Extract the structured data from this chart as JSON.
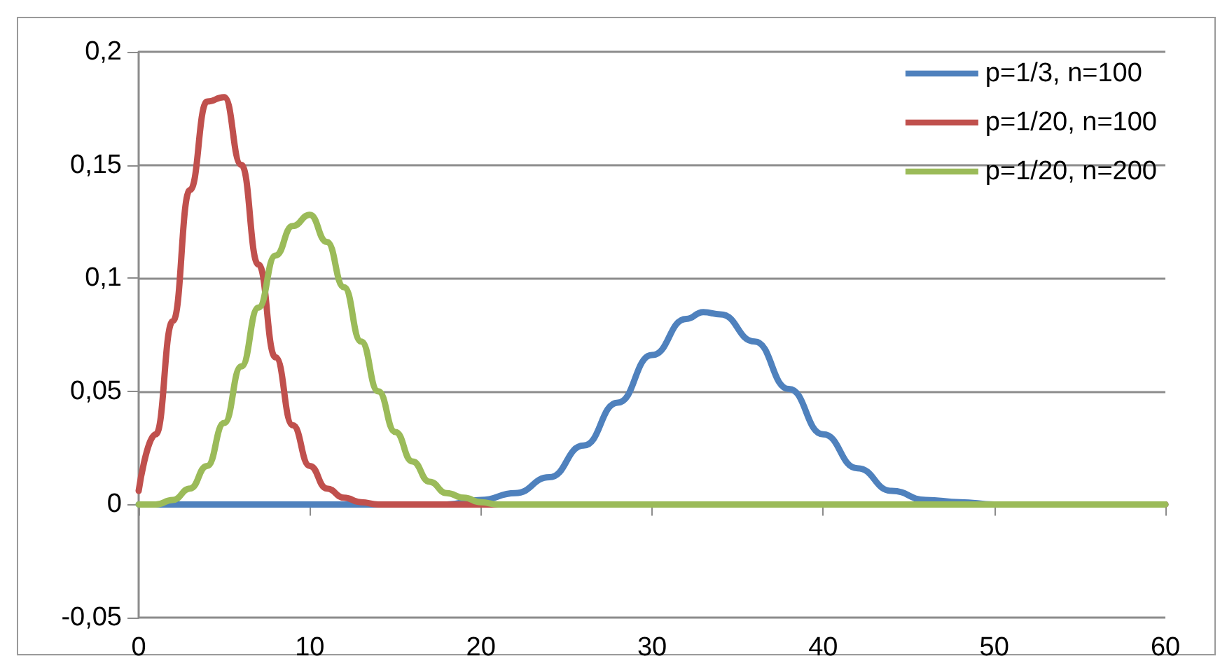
{
  "chart_data": {
    "type": "line",
    "xlim": [
      0,
      60
    ],
    "xticks": [
      0,
      10,
      20,
      30,
      40,
      50,
      60
    ],
    "ylim": [
      -0.05,
      0.2
    ],
    "yticks": [
      {
        "value": -0.05,
        "label": "-0,05"
      },
      {
        "value": 0,
        "label": "0"
      },
      {
        "value": 0.05,
        "label": "0,05"
      },
      {
        "value": 0.1,
        "label": "0,1"
      },
      {
        "value": 0.15,
        "label": "0,15"
      },
      {
        "value": 0.2,
        "label": "0,2"
      }
    ],
    "grid": "y",
    "legend": "top right",
    "marker": "none",
    "line_style": "solid",
    "series": [
      {
        "name": "p=1/3, n=100",
        "color": "#4f81bd",
        "x": [
          0,
          18,
          20,
          22,
          24,
          26,
          28,
          30,
          32,
          33,
          34,
          36,
          38,
          40,
          42,
          44,
          46,
          48,
          50,
          52,
          60
        ],
        "values": [
          0,
          0,
          0.002,
          0.005,
          0.012,
          0.026,
          0.045,
          0.066,
          0.082,
          0.085,
          0.084,
          0.072,
          0.051,
          0.031,
          0.016,
          0.006,
          0.002,
          0.001,
          0,
          0,
          0
        ]
      },
      {
        "name": "p=1/20, n=100",
        "color": "#c0504d",
        "x": [
          0,
          1,
          2,
          3,
          4,
          5,
          6,
          7,
          8,
          9,
          10,
          11,
          12,
          13,
          14,
          20,
          60
        ],
        "values": [
          0.006,
          0.031,
          0.081,
          0.139,
          0.178,
          0.18,
          0.15,
          0.106,
          0.065,
          0.035,
          0.017,
          0.007,
          0.003,
          0.001,
          0,
          0,
          0
        ]
      },
      {
        "name": "p=1/20, n=200",
        "color": "#9bbb59",
        "x": [
          0,
          1,
          2,
          3,
          4,
          5,
          6,
          7,
          8,
          9,
          10,
          11,
          12,
          13,
          14,
          15,
          16,
          17,
          18,
          19,
          20,
          21,
          22,
          60
        ],
        "values": [
          0,
          0,
          0.002,
          0.007,
          0.017,
          0.036,
          0.061,
          0.087,
          0.11,
          0.123,
          0.128,
          0.116,
          0.096,
          0.072,
          0.05,
          0.032,
          0.019,
          0.01,
          0.005,
          0.003,
          0.001,
          0,
          0,
          0
        ]
      }
    ]
  }
}
